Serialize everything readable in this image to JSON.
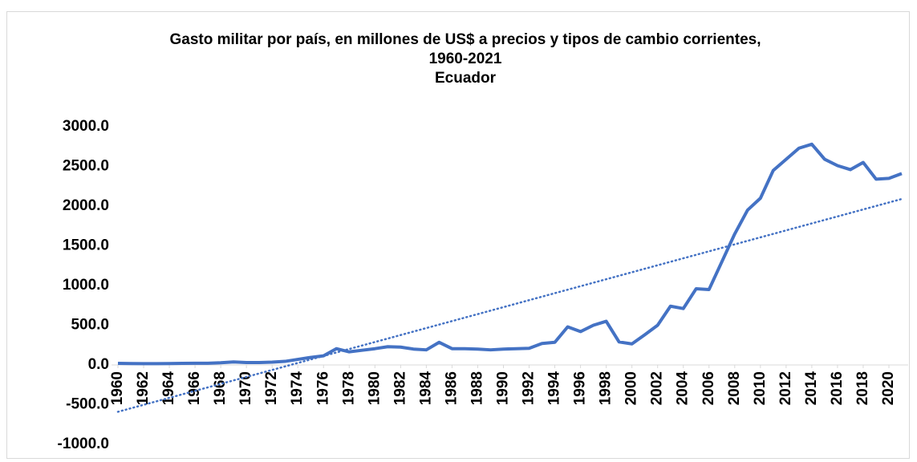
{
  "chart_data": {
    "type": "line",
    "title": "Gasto militar por país, en millones de US$ a precios y tipos de cambio corrientes, 1960-2021",
    "subtitle": "Ecuador",
    "x": [
      1960,
      1961,
      1962,
      1963,
      1964,
      1965,
      1966,
      1967,
      1968,
      1969,
      1970,
      1971,
      1972,
      1973,
      1974,
      1975,
      1976,
      1977,
      1978,
      1979,
      1980,
      1981,
      1982,
      1983,
      1984,
      1985,
      1986,
      1987,
      1988,
      1989,
      1990,
      1991,
      1992,
      1993,
      1994,
      1995,
      1996,
      1997,
      1998,
      1999,
      2000,
      2001,
      2002,
      2003,
      2004,
      2005,
      2006,
      2007,
      2008,
      2009,
      2010,
      2011,
      2012,
      2013,
      2014,
      2015,
      2016,
      2017,
      2018,
      2019,
      2020,
      2021
    ],
    "series": [
      {
        "color": "#4472c4",
        "values": [
          20,
          18,
          17,
          17,
          18,
          20,
          22,
          22,
          28,
          38,
          30,
          30,
          35,
          45,
          70,
          95,
          115,
          205,
          165,
          185,
          205,
          230,
          225,
          200,
          190,
          285,
          205,
          205,
          200,
          190,
          200,
          205,
          210,
          270,
          285,
          480,
          420,
          500,
          550,
          290,
          265,
          380,
          500,
          740,
          710,
          960,
          950,
          1300,
          1650,
          1950,
          2100,
          2450,
          2590,
          2730,
          2780,
          2590,
          2510,
          2460,
          2550,
          2340,
          2350,
          2410
        ]
      }
    ],
    "trendline": {
      "x": [
        1960,
        2021
      ],
      "values": [
        -590,
        2090
      ],
      "color": "#4472c4"
    },
    "xlim": [
      1960,
      2021
    ],
    "xticks": [
      1960,
      1962,
      1964,
      1966,
      1968,
      1970,
      1972,
      1974,
      1976,
      1978,
      1980,
      1982,
      1984,
      1986,
      1988,
      1990,
      1992,
      1994,
      1996,
      1998,
      2000,
      2002,
      2004,
      2006,
      2008,
      2010,
      2012,
      2014,
      2016,
      2018,
      2020
    ],
    "ylim": [
      -1000,
      3000
    ],
    "yticks": [
      {
        "value": -1000,
        "label": "-1000.0"
      },
      {
        "value": -500,
        "label": "-500.0"
      },
      {
        "value": 0,
        "label": "0.0"
      },
      {
        "value": 500,
        "label": "500.0"
      },
      {
        "value": 1000,
        "label": "1000.0"
      },
      {
        "value": 1500,
        "label": "1500.0"
      },
      {
        "value": 2000,
        "label": "2000.0"
      },
      {
        "value": 2500,
        "label": "2500.0"
      },
      {
        "value": 3000,
        "label": "3000.0"
      }
    ],
    "grid": false
  }
}
